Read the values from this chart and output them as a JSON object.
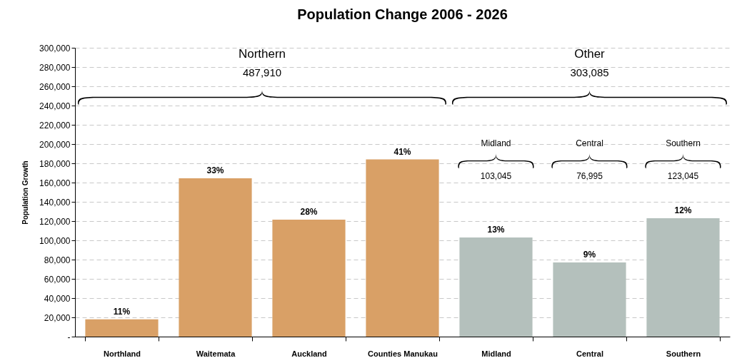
{
  "chart_data": {
    "type": "bar",
    "title": "Population Change 2006 - 2026",
    "ylabel": "Population Growth",
    "categories": [
      "Northland",
      "Waitemata",
      "Auckland",
      "Counties Manukau",
      "Midland",
      "Central",
      "Southern"
    ],
    "values": [
      18000,
      164500,
      121500,
      184000,
      103045,
      76995,
      123045
    ],
    "colors": [
      "#d9a066",
      "#d9a066",
      "#d9a066",
      "#d9a066",
      "#b4c0bc",
      "#b4c0bc",
      "#b4c0bc"
    ],
    "ylim": [
      0,
      300000
    ],
    "yticks": [
      {
        "value": 0,
        "label": "-"
      },
      {
        "value": 20000,
        "label": "20,000"
      },
      {
        "value": 40000,
        "label": "40,000"
      },
      {
        "value": 60000,
        "label": "60,000"
      },
      {
        "value": 80000,
        "label": "80,000"
      },
      {
        "value": 100000,
        "label": "100,000"
      },
      {
        "value": 120000,
        "label": "120,000"
      },
      {
        "value": 140000,
        "label": "140,000"
      },
      {
        "value": 160000,
        "label": "160,000"
      },
      {
        "value": 180000,
        "label": "180,000"
      },
      {
        "value": 200000,
        "label": "200,000"
      },
      {
        "value": 220000,
        "label": "220,000"
      },
      {
        "value": 240000,
        "label": "240,000"
      },
      {
        "value": 260000,
        "label": "260,000"
      },
      {
        "value": 280000,
        "label": "280,000"
      },
      {
        "value": 300000,
        "label": "300,000"
      }
    ],
    "grid": "y",
    "annotations": [
      "Northern",
      "487,910",
      "Other",
      "303,085",
      "Midland",
      "103,045",
      "Central",
      "76,995",
      "Southern",
      "123,045",
      {
        "text": "11%",
        "x": "Northland",
        "y": 18000
      },
      {
        "text": "33%",
        "x": "Waitemata",
        "y": 164500
      },
      {
        "text": "28%",
        "x": "Auckland",
        "y": 121500
      },
      {
        "text": "41%",
        "x": "Counties Manukau",
        "y": 184000
      },
      {
        "text": "13%",
        "x": "Midland",
        "y": 103045
      },
      {
        "text": "9%",
        "x": "Central",
        "y": 76995
      },
      {
        "text": "12%",
        "x": "Southern",
        "y": 123045
      }
    ]
  }
}
